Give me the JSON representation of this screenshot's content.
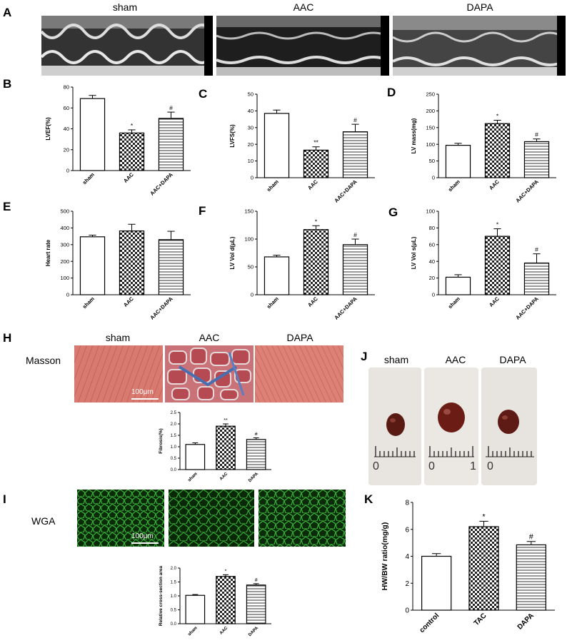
{
  "panels": {
    "A": {
      "letter": "A",
      "columns": [
        "sham",
        "AAC",
        "DAPA"
      ]
    },
    "B": {
      "letter": "B"
    },
    "C": {
      "letter": "C"
    },
    "D": {
      "letter": "D"
    },
    "E": {
      "letter": "E"
    },
    "F": {
      "letter": "F"
    },
    "G": {
      "letter": "G"
    },
    "H": {
      "letter": "H",
      "columns": [
        "sham",
        "AAC",
        "DAPA"
      ],
      "row_label": "Masson",
      "scale_bar": "100μm"
    },
    "I": {
      "letter": "I",
      "row_label": "WGA",
      "scale_bar": "100μm"
    },
    "J": {
      "letter": "J",
      "columns": [
        "sham",
        "AAC",
        "DAPA"
      ],
      "ruler_labels": [
        "0",
        "0",
        "1",
        "0"
      ]
    },
    "K": {
      "letter": "K"
    }
  },
  "chart_data": [
    {
      "id": "B",
      "type": "bar",
      "ylabel": "LVEF(%)",
      "categories": [
        "sham",
        "AAC",
        "AAC+DAPA"
      ],
      "values": [
        69,
        36,
        50
      ],
      "errors": [
        3,
        3,
        6
      ],
      "marks": [
        "",
        "*",
        "#"
      ],
      "ylim": [
        0,
        80
      ],
      "yticks": [
        0,
        20,
        40,
        60,
        80
      ],
      "patterns": [
        "white",
        "check",
        "hstripe"
      ]
    },
    {
      "id": "C",
      "type": "bar",
      "ylabel": "LVFS(%)",
      "categories": [
        "sham",
        "AAC",
        "AAC+DAPA"
      ],
      "values": [
        38.5,
        16.5,
        27.5
      ],
      "errors": [
        2,
        2,
        4.5
      ],
      "marks": [
        "",
        "**",
        "#"
      ],
      "ylim": [
        0,
        50
      ],
      "yticks": [
        0,
        10,
        20,
        30,
        40,
        50
      ],
      "patterns": [
        "white",
        "check",
        "hstripe"
      ]
    },
    {
      "id": "D",
      "type": "bar",
      "ylabel": "LV mass(mg)",
      "categories": [
        "sham",
        "AAC",
        "AAC+DAPA"
      ],
      "values": [
        97,
        162,
        108
      ],
      "errors": [
        6,
        10,
        8
      ],
      "marks": [
        "",
        "*",
        "#"
      ],
      "ylim": [
        0,
        250
      ],
      "yticks": [
        0,
        50,
        100,
        150,
        200,
        250
      ],
      "patterns": [
        "white",
        "check",
        "hstripe"
      ]
    },
    {
      "id": "E",
      "type": "bar",
      "ylabel": "Heart rate",
      "categories": [
        "sham",
        "AAC",
        "AAC+DAPA"
      ],
      "values": [
        347,
        382,
        330
      ],
      "errors": [
        10,
        40,
        50
      ],
      "marks": [
        "",
        "",
        ""
      ],
      "ylim": [
        0,
        500
      ],
      "yticks": [
        0,
        100,
        200,
        300,
        400,
        500
      ],
      "patterns": [
        "white",
        "check",
        "hstripe"
      ]
    },
    {
      "id": "F",
      "type": "bar",
      "ylabel": "LV Vol d(μL)",
      "categories": [
        "sham",
        "AAC",
        "AAC+DAPA"
      ],
      "values": [
        68,
        117,
        90
      ],
      "errors": [
        3,
        7,
        10
      ],
      "marks": [
        "",
        "*",
        "#"
      ],
      "ylim": [
        0,
        150
      ],
      "yticks": [
        0,
        50,
        100,
        150
      ],
      "patterns": [
        "white",
        "check",
        "hstripe"
      ]
    },
    {
      "id": "G",
      "type": "bar",
      "ylabel": "LV Vol s(μL)",
      "categories": [
        "sham",
        "AAC",
        "AAC+DAPA"
      ],
      "values": [
        21,
        70,
        38
      ],
      "errors": [
        3,
        9,
        11
      ],
      "marks": [
        "",
        "*",
        "#"
      ],
      "ylim": [
        0,
        100
      ],
      "yticks": [
        0,
        20,
        40,
        60,
        80,
        100
      ],
      "patterns": [
        "white",
        "check",
        "hstripe"
      ]
    },
    {
      "id": "H",
      "type": "bar",
      "ylabel": "Fibrosis(%)",
      "categories": [
        "sham",
        "AAC",
        "DAPA"
      ],
      "values": [
        1.1,
        1.9,
        1.32
      ],
      "errors": [
        0.07,
        0.1,
        0.07
      ],
      "marks": [
        "",
        "**",
        "#"
      ],
      "ylim": [
        0,
        2.5
      ],
      "yticks": [
        "0.0",
        "0.5",
        "1.0",
        "1.5",
        "2.0",
        "2.5"
      ],
      "patterns": [
        "white",
        "check",
        "hstripe"
      ]
    },
    {
      "id": "I",
      "type": "bar",
      "ylabel": "Relative cross-section area",
      "categories": [
        "sham",
        "AAC",
        "DAPA"
      ],
      "values": [
        1.02,
        1.7,
        1.39
      ],
      "errors": [
        0.03,
        0.06,
        0.05
      ],
      "marks": [
        "",
        "*",
        "#"
      ],
      "ylim": [
        0,
        2.0
      ],
      "yticks": [
        "0.0",
        "0.5",
        "1.0",
        "1.5",
        "2.0"
      ],
      "patterns": [
        "white",
        "check",
        "hstripe"
      ]
    },
    {
      "id": "K",
      "type": "bar",
      "ylabel": "HW/BW ratio(mg/g)",
      "categories": [
        "control",
        "TAC",
        "DAPA"
      ],
      "values": [
        4.0,
        6.2,
        4.85
      ],
      "errors": [
        0.2,
        0.4,
        0.25
      ],
      "marks": [
        "",
        "*",
        "#"
      ],
      "ylim": [
        0,
        8
      ],
      "yticks": [
        0,
        2,
        4,
        6,
        8
      ],
      "patterns": [
        "white",
        "check",
        "hstripe"
      ]
    }
  ]
}
